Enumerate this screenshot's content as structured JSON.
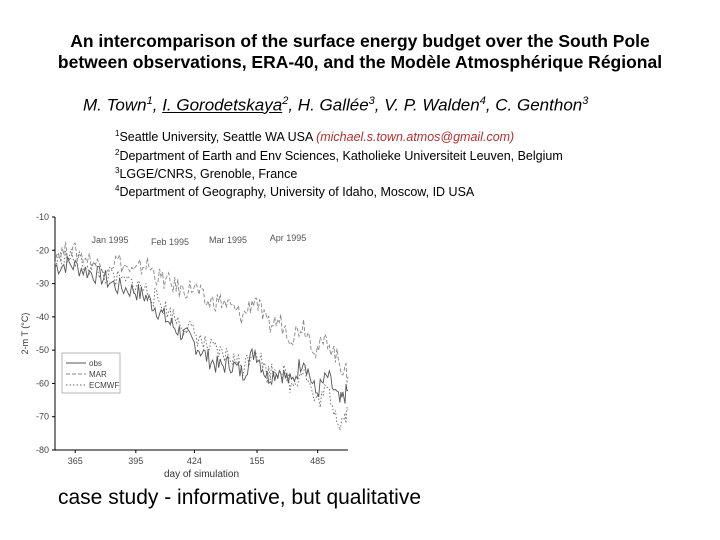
{
  "title_line1": "An intercomparison of the surface energy budget over the South Pole",
  "title_line2": "between observations, ERA-40, and the Modèle Atmosphérique Régional",
  "authors": [
    {
      "name": "M. Town",
      "sup": "1"
    },
    {
      "name": "I. Gorodetskaya",
      "sup": "2"
    },
    {
      "name": "H. Gallée",
      "sup": "3"
    },
    {
      "name": "V. P. Walden",
      "sup": "4"
    },
    {
      "name": "C. Genthon",
      "sup": "3"
    }
  ],
  "affiliations": [
    {
      "sup": "1",
      "text": "Seattle University, Seattle WA USA ",
      "email": "(michael.s.town.atmos@gmail.com)"
    },
    {
      "sup": "2",
      "text": "Department of Earth and Env Sciences, Katholieke Universiteit Leuven, Belgium"
    },
    {
      "sup": "3",
      "text": "LGGE/CNRS, Grenoble, France"
    },
    {
      "sup": "4",
      "text": "Department of Geography, University of Idaho, Moscow, ID USA"
    }
  ],
  "footer_text": "case study - informative, but qualitative",
  "chart_data": {
    "type": "line",
    "xlabel": "day of simulation",
    "ylabel": "2-m T (°C)",
    "xlim": [
      355,
      500
    ],
    "ylim": [
      -80,
      -10
    ],
    "xticks": [
      "365",
      "395",
      "424",
      "155",
      "485"
    ],
    "yticks": [
      -10,
      -20,
      -30,
      -40,
      -50,
      -60,
      -70,
      -80
    ],
    "annotations": [
      "Jan 1995",
      "Feb 1995",
      "Mar 1995",
      "Apr 1995"
    ],
    "legend_placement": "lower-left",
    "series": [
      {
        "name": "obs",
        "style": "solid",
        "x": [
          355,
          362,
          370,
          378,
          386,
          394,
          400,
          406,
          412,
          418,
          424,
          430,
          436,
          442,
          448,
          454,
          460,
          466,
          472,
          478,
          484,
          490,
          496,
          500
        ],
        "y": [
          -25,
          -24,
          -26,
          -28,
          -31,
          -32,
          -34,
          -38,
          -42,
          -45,
          -48,
          -52,
          -55,
          -54,
          -57,
          -50,
          -58,
          -56,
          -60,
          -52,
          -63,
          -58,
          -66,
          -62
        ]
      },
      {
        "name": "MAR",
        "style": "dashed",
        "x": [
          355,
          362,
          370,
          378,
          386,
          394,
          400,
          406,
          412,
          418,
          424,
          430,
          436,
          442,
          448,
          454,
          460,
          466,
          472,
          478,
          484,
          490,
          496,
          500
        ],
        "y": [
          -21,
          -20,
          -22,
          -25,
          -23,
          -27,
          -24,
          -28,
          -30,
          -32,
          -31,
          -36,
          -35,
          -37,
          -40,
          -34,
          -43,
          -41,
          -46,
          -42,
          -50,
          -47,
          -54,
          -58
        ]
      },
      {
        "name": "ECMWF",
        "style": "dotted",
        "x": [
          355,
          362,
          370,
          378,
          386,
          394,
          400,
          406,
          412,
          418,
          424,
          430,
          436,
          442,
          448,
          454,
          460,
          466,
          472,
          478,
          484,
          490,
          496,
          500
        ],
        "y": [
          -23,
          -22,
          -24,
          -27,
          -29,
          -30,
          -32,
          -35,
          -39,
          -42,
          -45,
          -49,
          -51,
          -52,
          -55,
          -49,
          -57,
          -55,
          -61,
          -55,
          -66,
          -62,
          -72,
          -68
        ]
      }
    ]
  }
}
